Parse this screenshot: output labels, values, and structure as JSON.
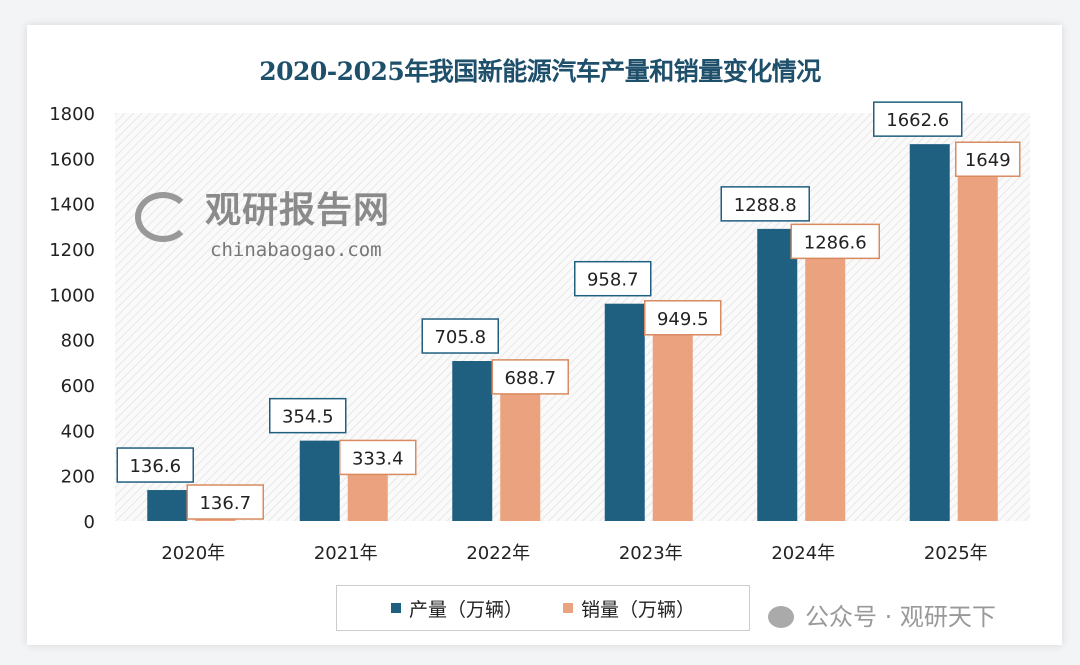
{
  "chart_data": {
    "type": "bar",
    "title": "2020-2025年我国新能源汽车产量和销量变化情况",
    "categories": [
      "2020年",
      "2021年",
      "2022年",
      "2023年",
      "2024年",
      "2025年"
    ],
    "series": [
      {
        "name": "产量（万辆）",
        "color": "#1f5f80",
        "values": [
          136.6,
          354.5,
          705.8,
          958.7,
          1288.8,
          1662.6
        ],
        "labels": [
          "136.6",
          "354.5",
          "705.8",
          "958.7",
          "1288.8",
          "1662.6"
        ]
      },
      {
        "name": "销量（万辆）",
        "color": "#eba27f",
        "values": [
          136.7,
          333.4,
          688.7,
          949.5,
          1286.6,
          1649
        ],
        "labels": [
          "136.7",
          "333.4",
          "688.7",
          "949.5",
          "1286.6",
          "1649"
        ]
      }
    ],
    "ylim": [
      0,
      1800
    ],
    "yticks": [
      "0",
      "200",
      "400",
      "600",
      "800",
      "1000",
      "1200",
      "1400",
      "1600",
      "1800"
    ],
    "grid": false,
    "legend_position": "bottom",
    "xlabel": "",
    "ylabel": ""
  },
  "watermark": {
    "brand": "观研报告网",
    "site": "chinabaogao.com",
    "account": "公众号 · 观研天下"
  }
}
